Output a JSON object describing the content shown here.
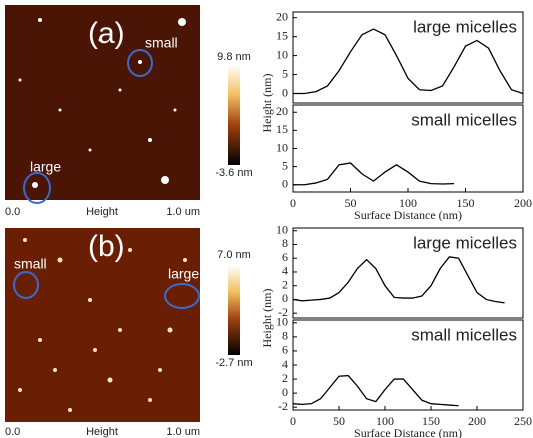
{
  "images": [
    {
      "label": "(a)",
      "annotations": [
        "small",
        "large"
      ],
      "xaxis": [
        "0.0",
        "Height",
        "1.0 um"
      ],
      "colorbar": [
        "9.8 nm",
        "-3.6 nm"
      ]
    },
    {
      "label": "(b)",
      "annotations": [
        "small",
        "large"
      ],
      "xaxis": [
        "0.0",
        "Height",
        "1.0 um"
      ],
      "colorbar": [
        "7.0 nm",
        "-2.7 nm"
      ]
    }
  ],
  "chart_data": [
    {
      "type": "line",
      "title": "large micelles",
      "ylabel": "Height (nm)",
      "x": [
        0,
        10,
        20,
        30,
        40,
        50,
        60,
        70,
        80,
        90,
        100,
        110,
        120,
        130,
        140,
        150,
        160,
        170,
        180,
        190,
        200
      ],
      "series": [
        {
          "color": "#000000",
          "values": [
            0,
            0,
            0.5,
            2,
            6,
            11,
            15.5,
            17,
            15.5,
            10,
            4,
            1,
            0.8,
            2,
            7,
            12.5,
            14,
            12,
            6,
            1,
            0
          ]
        }
      ],
      "xlim": [
        0,
        200
      ],
      "ylim": [
        -2.5,
        21.5
      ],
      "yticks": [
        0,
        5,
        10,
        15,
        20
      ]
    },
    {
      "type": "line",
      "title": "small micelles",
      "xlabel": "Surface Distance (nm)",
      "x": [
        0,
        10,
        20,
        30,
        40,
        50,
        60,
        70,
        80,
        90,
        100,
        110,
        120,
        130,
        140
      ],
      "series": [
        {
          "color": "#000000",
          "values": [
            0,
            0,
            0.5,
            1.5,
            5.5,
            6,
            3,
            1,
            3.5,
            5.5,
            3.5,
            1,
            0.3,
            0.2,
            0.3
          ]
        }
      ],
      "xlim": [
        0,
        200
      ],
      "ylim": [
        -2,
        22
      ],
      "xticks": [
        0,
        50,
        100,
        150,
        200
      ],
      "yticks": [
        0,
        5,
        10,
        15,
        20
      ]
    },
    {
      "type": "line",
      "title": "large micelles",
      "ylabel": "Height (nm)",
      "x": [
        0,
        10,
        20,
        30,
        40,
        50,
        60,
        70,
        80,
        90,
        100,
        110,
        120,
        130,
        140,
        150,
        160,
        170,
        180,
        190,
        200,
        210,
        220,
        230
      ],
      "series": [
        {
          "color": "#000000",
          "values": [
            0,
            -0.2,
            -0.1,
            0,
            0.2,
            1,
            2.5,
            4.5,
            5.8,
            4.5,
            2,
            0.3,
            0.2,
            0.2,
            0.5,
            2,
            4.5,
            6.2,
            6,
            3.5,
            1,
            0,
            -0.3,
            -0.5
          ]
        }
      ],
      "xlim": [
        0,
        250
      ],
      "ylim": [
        -2.7,
        10.4
      ],
      "yticks": [
        -2,
        0,
        2,
        4,
        6,
        8,
        10
      ]
    },
    {
      "type": "line",
      "title": "small micelles",
      "xlabel": "Surface Distance (nm)",
      "x": [
        0,
        10,
        20,
        30,
        40,
        50,
        60,
        70,
        80,
        90,
        100,
        110,
        120,
        130,
        140,
        150,
        160,
        170,
        180
      ],
      "series": [
        {
          "color": "#000000",
          "values": [
            -1.5,
            -1.6,
            -1.5,
            -0.8,
            0.8,
            2.4,
            2.5,
            1,
            -0.8,
            -1.2,
            0.5,
            2,
            2,
            0.5,
            -1,
            -1.5,
            -1.6,
            -1.7,
            -1.8
          ]
        }
      ],
      "xlim": [
        0,
        250
      ],
      "ylim": [
        -2.4,
        10.4
      ],
      "xticks": [
        0,
        50,
        100,
        150,
        200,
        250
      ],
      "yticks": [
        -2,
        0,
        2,
        4,
        6,
        8,
        10
      ]
    }
  ]
}
